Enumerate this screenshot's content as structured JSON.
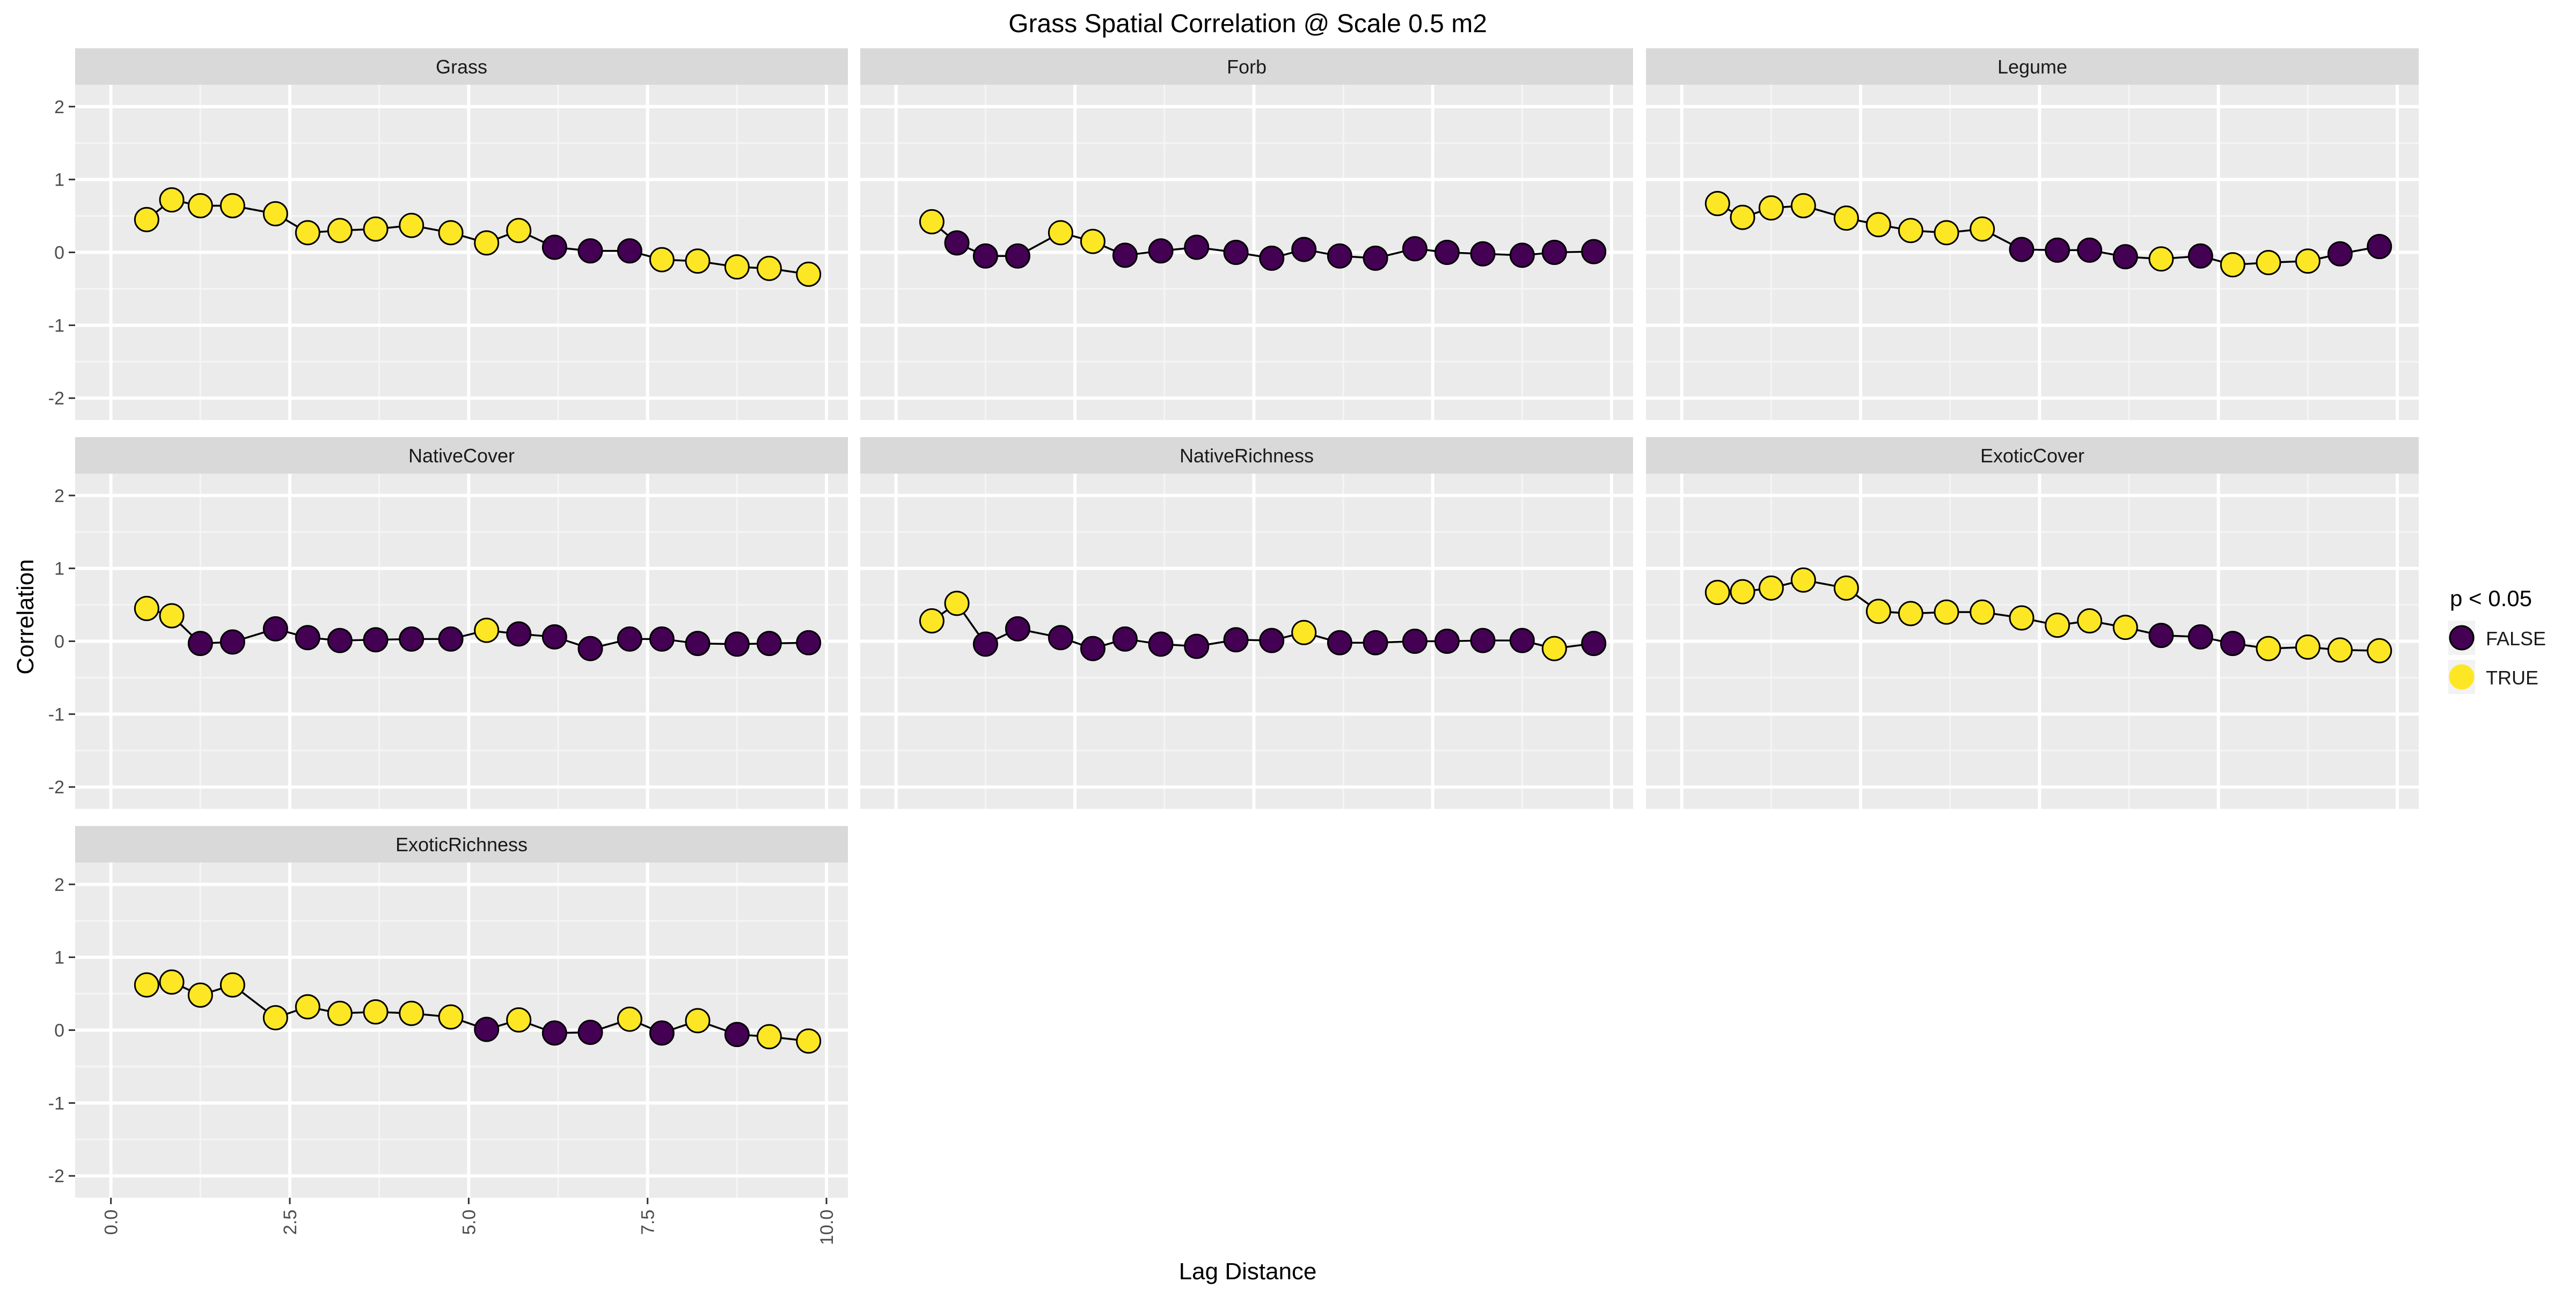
{
  "chart_data": {
    "type": "scatter",
    "title": "Grass Spatial Correlation @ Scale 0.5 m2",
    "xlabel": "Lag Distance",
    "ylabel": "Correlation",
    "xlim": [
      -0.5,
      10.3
    ],
    "ylim": [
      -2.3,
      2.3
    ],
    "x_ticks": [
      "0.0",
      "2.5",
      "5.0",
      "7.5",
      "10.0"
    ],
    "x_tick_values": [
      0,
      2.5,
      5,
      7.5,
      10
    ],
    "y_ticks": [
      "-2",
      "-1",
      "0",
      "1",
      "2"
    ],
    "y_tick_values": [
      -2,
      -1,
      0,
      1,
      2
    ],
    "grid": true,
    "legend": {
      "title": "p < 0.05",
      "placement": "right",
      "entries": [
        {
          "label": "FALSE",
          "color": "#440154"
        },
        {
          "label": "TRUE",
          "color": "#FDE725"
        }
      ]
    },
    "colors": {
      "FALSE": "#440154",
      "TRUE": "#FDE725",
      "panel_bg": "#EBEBEB",
      "strip_bg": "#D9D9D9"
    },
    "panels": [
      {
        "name": "Grass",
        "x": [
          0.5,
          0.85,
          1.25,
          1.7,
          2.3,
          2.75,
          3.2,
          3.7,
          4.2,
          4.75,
          5.25,
          5.7,
          6.2,
          6.7,
          7.25,
          7.7,
          8.2,
          8.75,
          9.2,
          9.75
        ],
        "y": [
          0.45,
          0.72,
          0.64,
          0.64,
          0.53,
          0.27,
          0.3,
          0.32,
          0.37,
          0.27,
          0.13,
          0.3,
          0.07,
          0.02,
          0.02,
          -0.1,
          -0.12,
          -0.2,
          -0.22,
          -0.3
        ],
        "sig": [
          true,
          true,
          true,
          true,
          true,
          true,
          true,
          true,
          true,
          true,
          true,
          true,
          false,
          false,
          false,
          true,
          true,
          true,
          true,
          true
        ]
      },
      {
        "name": "Forb",
        "x": [
          0.5,
          0.85,
          1.25,
          1.7,
          2.3,
          2.75,
          3.2,
          3.7,
          4.2,
          4.75,
          5.25,
          5.7,
          6.2,
          6.7,
          7.25,
          7.7,
          8.2,
          8.75,
          9.2,
          9.75
        ],
        "y": [
          0.42,
          0.13,
          -0.05,
          -0.05,
          0.27,
          0.15,
          -0.04,
          0.02,
          0.07,
          0.0,
          -0.08,
          0.04,
          -0.05,
          -0.08,
          0.05,
          0.0,
          -0.02,
          -0.04,
          0.0,
          0.01
        ],
        "sig": [
          true,
          false,
          false,
          false,
          true,
          true,
          false,
          false,
          false,
          false,
          false,
          false,
          false,
          false,
          false,
          false,
          false,
          false,
          false,
          false
        ]
      },
      {
        "name": "Legume",
        "x": [
          0.5,
          0.85,
          1.25,
          1.7,
          2.3,
          2.75,
          3.2,
          3.7,
          4.2,
          4.75,
          5.25,
          5.7,
          6.2,
          6.7,
          7.25,
          7.7,
          8.2,
          8.75,
          9.2,
          9.75
        ],
        "y": [
          0.67,
          0.48,
          0.61,
          0.64,
          0.47,
          0.38,
          0.3,
          0.27,
          0.32,
          0.04,
          0.03,
          0.03,
          -0.06,
          -0.09,
          -0.05,
          -0.17,
          -0.14,
          -0.12,
          -0.02,
          0.08
        ],
        "sig": [
          true,
          true,
          true,
          true,
          true,
          true,
          true,
          true,
          true,
          false,
          false,
          false,
          false,
          true,
          false,
          true,
          true,
          true,
          false,
          false
        ]
      },
      {
        "name": "NativeCover",
        "x": [
          0.5,
          0.85,
          1.25,
          1.7,
          2.3,
          2.75,
          3.2,
          3.7,
          4.2,
          4.75,
          5.25,
          5.7,
          6.2,
          6.7,
          7.25,
          7.7,
          8.2,
          8.75,
          9.2,
          9.75
        ],
        "y": [
          0.45,
          0.35,
          -0.03,
          -0.01,
          0.17,
          0.05,
          0.01,
          0.02,
          0.03,
          0.03,
          0.15,
          0.1,
          0.06,
          -0.1,
          0.03,
          0.03,
          -0.03,
          -0.04,
          -0.03,
          -0.02
        ],
        "sig": [
          true,
          true,
          false,
          false,
          false,
          false,
          false,
          false,
          false,
          false,
          true,
          false,
          false,
          false,
          false,
          false,
          false,
          false,
          false,
          false
        ]
      },
      {
        "name": "NativeRichness",
        "x": [
          0.5,
          0.85,
          1.25,
          1.7,
          2.3,
          2.75,
          3.2,
          3.7,
          4.2,
          4.75,
          5.25,
          5.7,
          6.2,
          6.7,
          7.25,
          7.7,
          8.2,
          8.75,
          9.2,
          9.75
        ],
        "y": [
          0.28,
          0.52,
          -0.04,
          0.17,
          0.05,
          -0.1,
          0.03,
          -0.04,
          -0.07,
          0.02,
          0.01,
          0.12,
          -0.02,
          -0.02,
          0.0,
          0.0,
          0.01,
          0.01,
          -0.1,
          -0.03
        ],
        "sig": [
          true,
          true,
          false,
          false,
          false,
          false,
          false,
          false,
          false,
          false,
          false,
          true,
          false,
          false,
          false,
          false,
          false,
          false,
          true,
          false
        ]
      },
      {
        "name": "ExoticCover",
        "x": [
          0.5,
          0.85,
          1.25,
          1.7,
          2.3,
          2.75,
          3.2,
          3.7,
          4.2,
          4.75,
          5.25,
          5.7,
          6.2,
          6.7,
          7.25,
          7.7,
          8.2,
          8.75,
          9.2,
          9.75
        ],
        "y": [
          0.67,
          0.68,
          0.73,
          0.84,
          0.73,
          0.41,
          0.38,
          0.4,
          0.4,
          0.32,
          0.22,
          0.28,
          0.19,
          0.08,
          0.06,
          -0.03,
          -0.1,
          -0.08,
          -0.12,
          -0.13
        ],
        "sig": [
          true,
          true,
          true,
          true,
          true,
          true,
          true,
          true,
          true,
          true,
          true,
          true,
          true,
          false,
          false,
          false,
          true,
          true,
          true,
          true
        ]
      },
      {
        "name": "ExoticRichness",
        "x": [
          0.5,
          0.85,
          1.25,
          1.7,
          2.3,
          2.75,
          3.2,
          3.7,
          4.2,
          4.75,
          5.25,
          5.7,
          6.2,
          6.7,
          7.25,
          7.7,
          8.2,
          8.75,
          9.2,
          9.75
        ],
        "y": [
          0.62,
          0.66,
          0.48,
          0.62,
          0.17,
          0.32,
          0.23,
          0.25,
          0.23,
          0.18,
          0.01,
          0.14,
          -0.04,
          -0.03,
          0.15,
          -0.04,
          0.13,
          -0.06,
          -0.09,
          -0.15
        ],
        "sig": [
          true,
          true,
          true,
          true,
          true,
          true,
          true,
          true,
          true,
          true,
          false,
          true,
          false,
          false,
          true,
          false,
          true,
          false,
          true,
          true
        ]
      }
    ]
  }
}
